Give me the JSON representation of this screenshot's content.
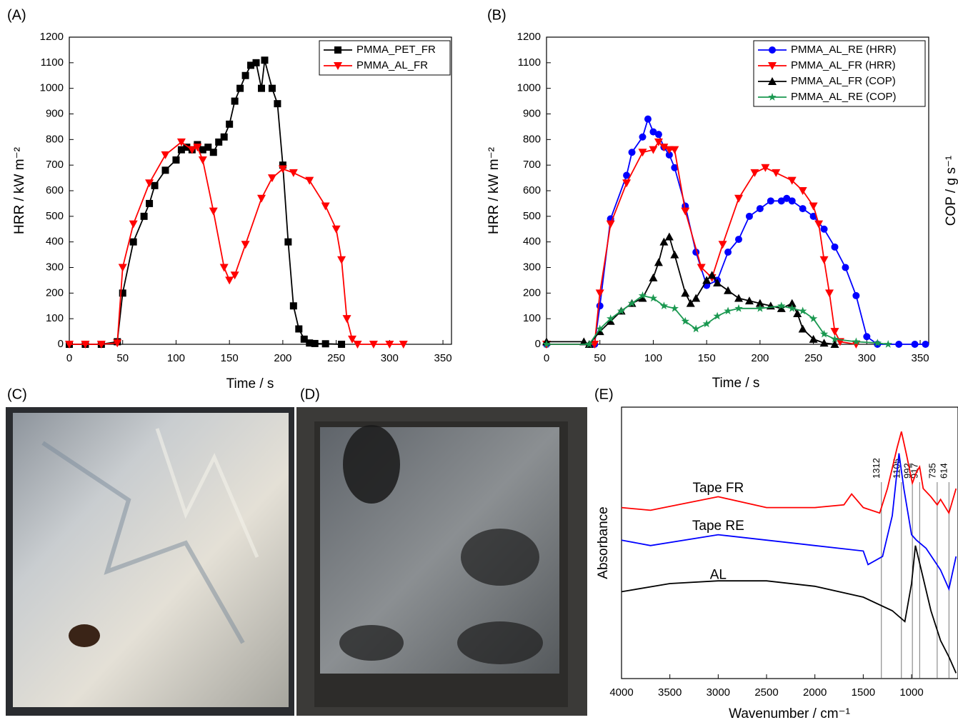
{
  "chart_data": [
    {
      "type": "line",
      "label": "(A)",
      "xlabel": "Time / s",
      "ylabel": "HRR / kW m⁻²",
      "xlim": [
        0,
        358
      ],
      "xticks": [
        0,
        50,
        100,
        150,
        200,
        250,
        300,
        350
      ],
      "ylim": [
        0,
        1200
      ],
      "yticks": [
        0,
        100,
        200,
        300,
        400,
        500,
        600,
        700,
        800,
        900,
        1000,
        1100,
        1200
      ],
      "legend": "upper right",
      "series": [
        {
          "name": "PMMA_PET_FR",
          "color": "#000000",
          "marker": "square",
          "x": [
            0,
            15,
            30,
            45,
            50,
            60,
            70,
            75,
            80,
            90,
            100,
            105,
            110,
            115,
            120,
            125,
            130,
            135,
            140,
            145,
            150,
            155,
            160,
            165,
            170,
            175,
            180,
            183,
            190,
            195,
            200,
            205,
            210,
            215,
            220,
            225,
            230,
            240,
            255
          ],
          "values": [
            0,
            0,
            0,
            10,
            200,
            400,
            500,
            550,
            620,
            680,
            720,
            760,
            770,
            760,
            780,
            760,
            770,
            750,
            790,
            810,
            860,
            950,
            1000,
            1050,
            1090,
            1100,
            1000,
            1110,
            1000,
            940,
            700,
            400,
            150,
            60,
            20,
            5,
            3,
            2,
            0
          ]
        },
        {
          "name": "PMMA_AL_FR",
          "color": "#ff0000",
          "marker": "triangle-down",
          "x": [
            0,
            15,
            30,
            45,
            50,
            60,
            75,
            90,
            105,
            115,
            120,
            125,
            135,
            145,
            150,
            155,
            165,
            180,
            190,
            200,
            210,
            225,
            240,
            250,
            255,
            260,
            265,
            270,
            285,
            300,
            313
          ],
          "values": [
            0,
            0,
            0,
            5,
            300,
            470,
            630,
            740,
            790,
            760,
            770,
            720,
            520,
            300,
            250,
            270,
            390,
            570,
            650,
            685,
            670,
            640,
            540,
            450,
            330,
            100,
            20,
            0,
            0,
            0,
            0
          ]
        }
      ]
    },
    {
      "type": "line",
      "label": "(B)",
      "xlabel": "Time / s",
      "ylabel": "HRR / kW m⁻²",
      "y2label": "COP / g s⁻¹",
      "xlim": [
        0,
        358
      ],
      "xticks": [
        0,
        50,
        100,
        150,
        200,
        250,
        300,
        350
      ],
      "ylim": [
        0,
        1200
      ],
      "yticks": [
        0,
        100,
        200,
        300,
        400,
        500,
        600,
        700,
        800,
        900,
        1000,
        1100,
        1200
      ],
      "y2lim": [
        0,
        1.2
      ],
      "y2color": "#1a9850",
      "legend": "upper right",
      "series": [
        {
          "name": "PMMA_AL_RE (HRR)",
          "color": "#0000ff",
          "marker": "circle",
          "x": [
            0,
            45,
            50,
            60,
            75,
            80,
            90,
            95,
            100,
            105,
            110,
            115,
            120,
            130,
            140,
            150,
            160,
            170,
            180,
            190,
            200,
            210,
            220,
            225,
            230,
            240,
            250,
            260,
            270,
            280,
            290,
            300,
            310,
            330,
            345,
            355
          ],
          "values": [
            0,
            0,
            150,
            490,
            660,
            750,
            810,
            880,
            830,
            820,
            770,
            740,
            690,
            540,
            360,
            230,
            250,
            360,
            410,
            500,
            530,
            560,
            560,
            570,
            560,
            530,
            500,
            450,
            380,
            300,
            190,
            30,
            0,
            0,
            0,
            0
          ]
        },
        {
          "name": "PMMA_AL_FR (HRR)",
          "color": "#ff0000",
          "marker": "triangle-down",
          "x": [
            0,
            45,
            50,
            60,
            75,
            90,
            100,
            105,
            110,
            115,
            120,
            130,
            145,
            155,
            165,
            180,
            195,
            205,
            215,
            230,
            240,
            250,
            255,
            260,
            265,
            270,
            275,
            290
          ],
          "values": [
            0,
            0,
            200,
            470,
            630,
            750,
            760,
            790,
            770,
            760,
            760,
            520,
            300,
            260,
            390,
            570,
            670,
            690,
            670,
            640,
            600,
            540,
            470,
            330,
            200,
            50,
            10,
            0
          ]
        },
        {
          "name": "PMMA_AL_FR (COP)",
          "color": "#000000",
          "marker": "triangle-up",
          "axis": "y2",
          "x": [
            0,
            35,
            40,
            50,
            60,
            70,
            80,
            90,
            100,
            105,
            110,
            115,
            120,
            130,
            135,
            140,
            150,
            155,
            160,
            170,
            180,
            190,
            200,
            210,
            220,
            230,
            235,
            240,
            250,
            260,
            270
          ],
          "values": [
            0.01,
            0.01,
            0,
            0.05,
            0.09,
            0.13,
            0.16,
            0.18,
            0.26,
            0.32,
            0.4,
            0.42,
            0.35,
            0.2,
            0.16,
            0.18,
            0.25,
            0.27,
            0.24,
            0.21,
            0.18,
            0.17,
            0.16,
            0.15,
            0.14,
            0.16,
            0.12,
            0.06,
            0.02,
            0.005,
            0
          ]
        },
        {
          "name": "PMMA_AL_RE (COP)",
          "color": "#1a9850",
          "marker": "star",
          "axis": "y2",
          "x": [
            0,
            40,
            50,
            60,
            70,
            80,
            90,
            100,
            110,
            120,
            130,
            140,
            150,
            160,
            170,
            180,
            200,
            220,
            230,
            240,
            250,
            260,
            270,
            290,
            310,
            320
          ],
          "values": [
            0,
            0,
            0.06,
            0.1,
            0.13,
            0.16,
            0.19,
            0.18,
            0.15,
            0.14,
            0.09,
            0.06,
            0.08,
            0.11,
            0.13,
            0.14,
            0.14,
            0.15,
            0.14,
            0.13,
            0.1,
            0.04,
            0.02,
            0.01,
            0.005,
            0
          ]
        }
      ]
    },
    {
      "type": "line",
      "label": "(E)",
      "xlabel": "Wavenumber / cm⁻¹",
      "ylabel": "Absorbance",
      "xlim": [
        4000,
        520
      ],
      "xticks": [
        4000,
        3500,
        3000,
        2500,
        2000,
        1500,
        1000
      ],
      "ylim": [
        0,
        1
      ],
      "peaks": [
        1312,
        1105,
        992,
        917,
        735,
        614
      ],
      "series": [
        {
          "name": "Tape FR",
          "color": "#ff0000",
          "x": [
            4000,
            3700,
            3000,
            2500,
            2000,
            1700,
            1620,
            1500,
            1330,
            1250,
            1150,
            1105,
            1050,
            992,
            950,
            917,
            880,
            800,
            735,
            700,
            614,
            540
          ],
          "values": [
            0.63,
            0.62,
            0.67,
            0.63,
            0.63,
            0.64,
            0.68,
            0.63,
            0.61,
            0.7,
            0.85,
            0.91,
            0.82,
            0.72,
            0.76,
            0.78,
            0.7,
            0.67,
            0.64,
            0.66,
            0.61,
            0.7
          ]
        },
        {
          "name": "Tape RE",
          "color": "#0000ff",
          "x": [
            4000,
            3700,
            3000,
            2500,
            2000,
            1500,
            1450,
            1300,
            1200,
            1130,
            1080,
            1000,
            950,
            850,
            700,
            614,
            540
          ],
          "values": [
            0.51,
            0.49,
            0.53,
            0.51,
            0.49,
            0.47,
            0.42,
            0.45,
            0.6,
            0.83,
            0.7,
            0.53,
            0.51,
            0.48,
            0.4,
            0.33,
            0.45
          ]
        },
        {
          "name": "AL",
          "color": "#000000",
          "x": [
            4000,
            3500,
            3000,
            2500,
            2000,
            1500,
            1200,
            1070,
            1000,
            960,
            900,
            800,
            700,
            614,
            540
          ],
          "values": [
            0.32,
            0.35,
            0.36,
            0.36,
            0.34,
            0.3,
            0.25,
            0.21,
            0.35,
            0.49,
            0.4,
            0.25,
            0.14,
            0.08,
            0.02
          ]
        }
      ]
    }
  ],
  "photos": [
    {
      "label": "(C)"
    },
    {
      "label": "(D)"
    }
  ]
}
